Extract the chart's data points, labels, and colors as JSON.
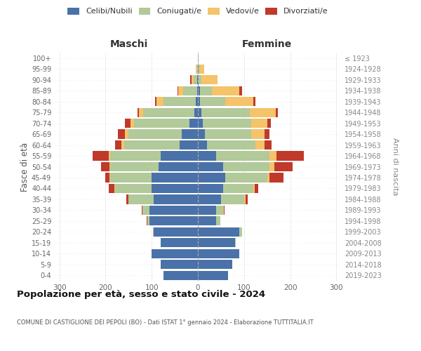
{
  "age_groups_bottom_to_top": [
    "0-4",
    "5-9",
    "10-14",
    "15-19",
    "20-24",
    "25-29",
    "30-34",
    "35-39",
    "40-44",
    "45-49",
    "50-54",
    "55-59",
    "60-64",
    "65-69",
    "70-74",
    "75-79",
    "80-84",
    "85-89",
    "90-94",
    "95-99",
    "100+"
  ],
  "birth_years_bottom_to_top": [
    "2019-2023",
    "2014-2018",
    "2009-2013",
    "2004-2008",
    "1999-2003",
    "1994-1998",
    "1989-1993",
    "1984-1988",
    "1979-1983",
    "1974-1978",
    "1969-1973",
    "1964-1968",
    "1959-1963",
    "1954-1958",
    "1949-1953",
    "1944-1948",
    "1939-1943",
    "1934-1938",
    "1929-1933",
    "1924-1928",
    "≤ 1923"
  ],
  "male": {
    "celibe": [
      75,
      80,
      100,
      80,
      95,
      105,
      105,
      95,
      100,
      100,
      85,
      80,
      40,
      35,
      18,
      8,
      5,
      2,
      1,
      0,
      0
    ],
    "coniugato": [
      0,
      0,
      0,
      1,
      2,
      5,
      15,
      55,
      80,
      90,
      105,
      110,
      120,
      115,
      120,
      110,
      70,
      30,
      8,
      2,
      0
    ],
    "vedovo": [
      0,
      0,
      0,
      0,
      0,
      0,
      0,
      0,
      1,
      1,
      2,
      3,
      5,
      8,
      8,
      10,
      15,
      10,
      5,
      2,
      0
    ],
    "divorziato": [
      0,
      0,
      0,
      0,
      0,
      1,
      2,
      5,
      12,
      10,
      18,
      35,
      15,
      15,
      12,
      3,
      3,
      2,
      2,
      0,
      0
    ]
  },
  "female": {
    "nubile": [
      65,
      75,
      90,
      80,
      90,
      40,
      40,
      50,
      55,
      60,
      55,
      40,
      20,
      15,
      10,
      8,
      5,
      5,
      2,
      2,
      0
    ],
    "coniugata": [
      0,
      0,
      0,
      2,
      5,
      8,
      15,
      50,
      65,
      90,
      100,
      115,
      105,
      100,
      105,
      105,
      55,
      25,
      5,
      2,
      0
    ],
    "vedova": [
      0,
      0,
      0,
      0,
      0,
      0,
      1,
      3,
      3,
      5,
      10,
      15,
      20,
      30,
      35,
      55,
      60,
      60,
      35,
      10,
      2
    ],
    "divorziata": [
      0,
      0,
      0,
      0,
      0,
      0,
      2,
      5,
      8,
      30,
      40,
      60,
      15,
      10,
      8,
      5,
      5,
      5,
      1,
      0,
      0
    ]
  },
  "colors": {
    "celibe_nubile": "#4a72a8",
    "coniugato_a": "#b2c99a",
    "vedovo_a": "#f5c36a",
    "divorziato_a": "#c0392b"
  },
  "xlim": 310,
  "title": "Popolazione per età, sesso e stato civile - 2024",
  "subtitle": "COMUNE DI CASTIGLIONE DEI PEPOLI (BO) - Dati ISTAT 1° gennaio 2024 - Elaborazione TUTTITALIA.IT",
  "ylabel_left": "Fasce di età",
  "ylabel_right": "Anni di nascita",
  "xlabel_left": "Maschi",
  "xlabel_right": "Femmine",
  "legend_labels": [
    "Celibi/Nubili",
    "Coniugati/e",
    "Vedovi/e",
    "Divorziati/e"
  ],
  "bg_color": "#ffffff",
  "grid_color": "#cccccc",
  "bar_height": 0.85
}
